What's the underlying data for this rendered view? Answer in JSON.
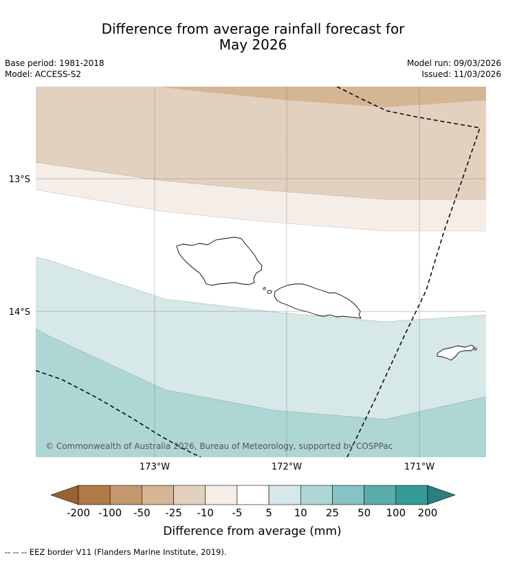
{
  "title": {
    "line1": "Difference from average rainfall forecast for",
    "line2": "May 2026"
  },
  "meta": {
    "base_period": "Base period: 1981-2018",
    "model": "Model: ACCESS-S2",
    "model_run": "Model run: 09/03/2026",
    "issued": "Issued: 11/03/2026"
  },
  "map": {
    "lat_labels": [
      "13°S",
      "14°S"
    ],
    "lon_labels": [
      "173°W",
      "172°W",
      "171°W"
    ],
    "copyright": "© Commonwealth of Australia 2026, Bureau of Meteorology, supported by COSPPac"
  },
  "colorbar": {
    "ticks": [
      "-200",
      "-100",
      "-50",
      "-25",
      "-10",
      "-5",
      "5",
      "10",
      "25",
      "50",
      "100",
      "200"
    ],
    "colors": [
      "#9c6130",
      "#b07a47",
      "#c4986e",
      "#d6b595",
      "#e3d1c0",
      "#f4ede8",
      "#ffffff",
      "#d6e8e7",
      "#aed6d5",
      "#87c3c2",
      "#5badab",
      "#339a98",
      "#2b7f7e"
    ],
    "label": "Difference from average (mm)"
  },
  "footer": "--  --  -- EEZ border V11 (Flanders Marine Institute, 2019)."
}
